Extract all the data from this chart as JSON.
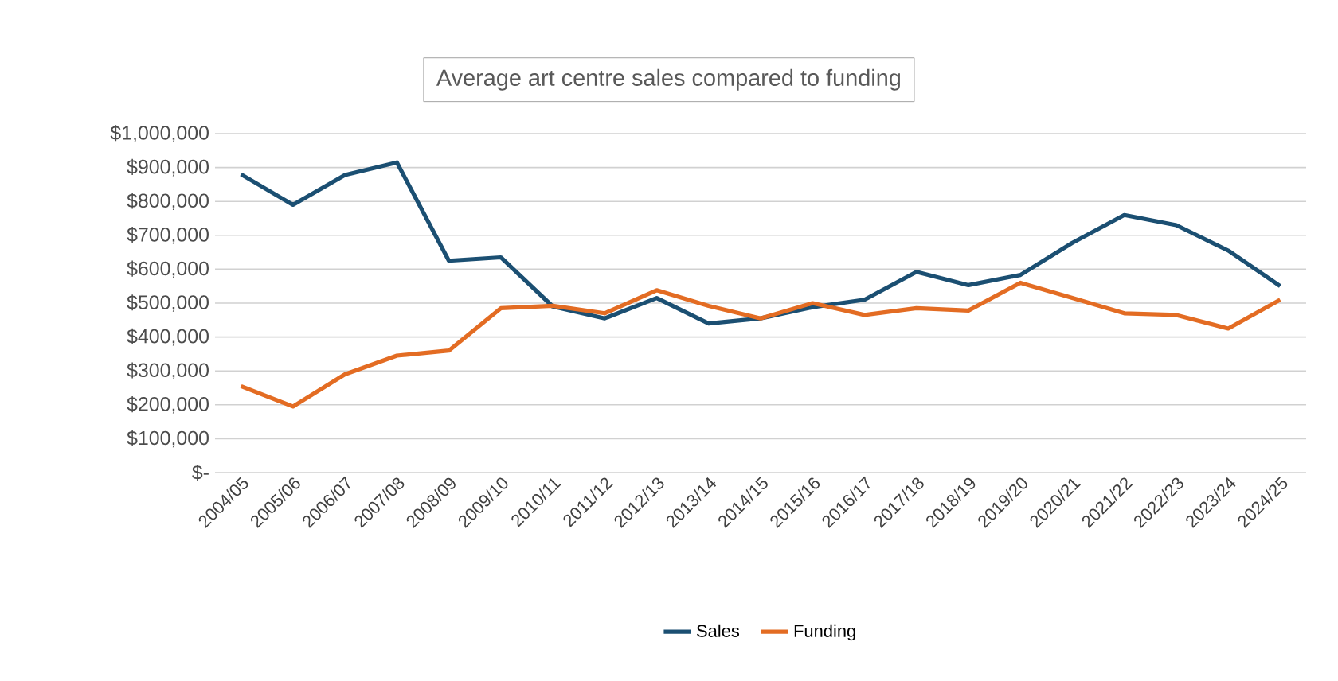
{
  "chart_data": {
    "type": "line",
    "title": "Average art centre sales compared to funding",
    "categories": [
      "2004/05",
      "2005/06",
      "2006/07",
      "2007/08",
      "2008/09",
      "2009/10",
      "2010/11",
      "2011/12",
      "2012/13",
      "2013/14",
      "2014/15",
      "2015/16",
      "2016/17",
      "2017/18",
      "2018/19",
      "2019/20",
      "2020/21",
      "2021/22",
      "2022/23",
      "2023/24",
      "2024/25"
    ],
    "series": [
      {
        "name": "Sales",
        "color": "#1b4f72",
        "values": [
          880000,
          790000,
          878000,
          915000,
          625000,
          635000,
          490000,
          455000,
          515000,
          440000,
          455000,
          488000,
          510000,
          592000,
          553000,
          583000,
          678000,
          760000,
          730000,
          655000,
          550000
        ]
      },
      {
        "name": "Funding",
        "color": "#e36c23",
        "values": [
          255000,
          195000,
          290000,
          345000,
          360000,
          485000,
          492000,
          470000,
          538000,
          492000,
          455000,
          500000,
          465000,
          485000,
          478000,
          560000,
          515000,
          470000,
          465000,
          425000,
          510000
        ]
      }
    ],
    "ylim": [
      0,
      1000000
    ],
    "yticks": [
      {
        "value": 0,
        "label": "$-"
      },
      {
        "value": 100000,
        "label": "$100,000"
      },
      {
        "value": 200000,
        "label": "$200,000"
      },
      {
        "value": 300000,
        "label": "$300,000"
      },
      {
        "value": 400000,
        "label": "$400,000"
      },
      {
        "value": 500000,
        "label": "$500,000"
      },
      {
        "value": 600000,
        "label": "$600,000"
      },
      {
        "value": 700000,
        "label": "$700,000"
      },
      {
        "value": 800000,
        "label": "$800,000"
      },
      {
        "value": 900000,
        "label": "$900,000"
      },
      {
        "value": 1000000,
        "label": "$1,000,000"
      }
    ],
    "grid": "y",
    "legend": "bottom",
    "marker": "none",
    "line_style": "solid"
  }
}
